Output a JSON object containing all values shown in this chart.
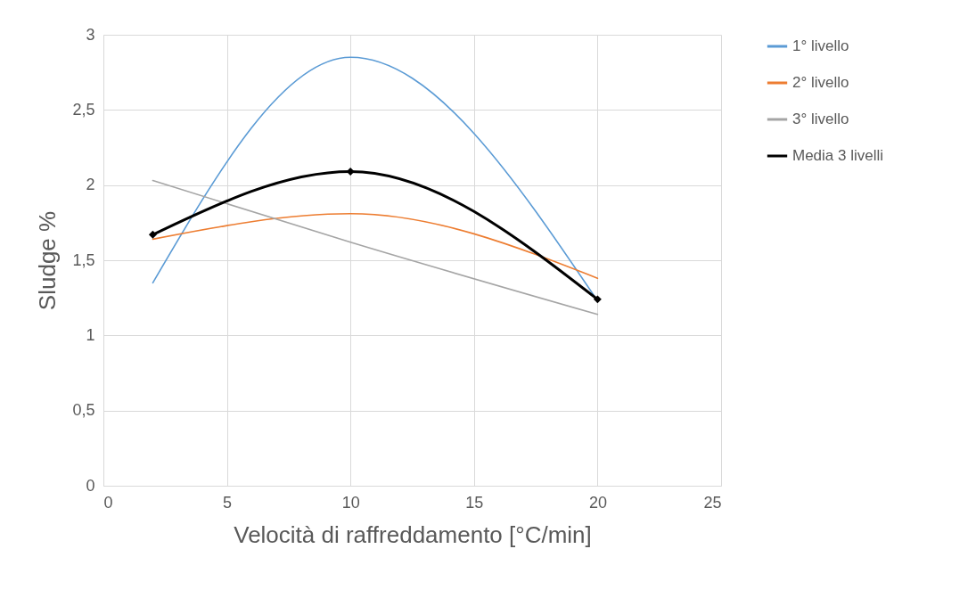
{
  "chart_data": {
    "type": "line",
    "xlabel": "Velocità di raffreddamento [°C/min]",
    "ylabel": "Sludge %",
    "x": [
      2,
      10,
      20
    ],
    "series": [
      {
        "name": "1° livello",
        "color": "#5b9bd5",
        "values": [
          1.35,
          2.85,
          1.23
        ]
      },
      {
        "name": "2° livello",
        "color": "#ed7d31",
        "values": [
          1.64,
          1.81,
          1.38
        ]
      },
      {
        "name": "3° livello",
        "color": "#a5a5a5",
        "values": [
          2.03,
          1.62,
          1.14
        ]
      },
      {
        "name": "Media 3 livelli",
        "color": "#000000",
        "values": [
          1.67,
          2.09,
          1.24
        ],
        "marker": "diamond"
      }
    ],
    "xlim": [
      0,
      25
    ],
    "xticks": [
      0,
      5,
      10,
      15,
      20,
      25
    ],
    "ylim": [
      0,
      3
    ],
    "yticks": [
      0,
      {
        "value": 0.5,
        "label": "0,5"
      },
      1,
      {
        "value": 1.5,
        "label": "1,5"
      },
      2,
      {
        "value": 2.5,
        "label": "2,5"
      },
      3
    ],
    "grid": true,
    "legend": "right"
  }
}
